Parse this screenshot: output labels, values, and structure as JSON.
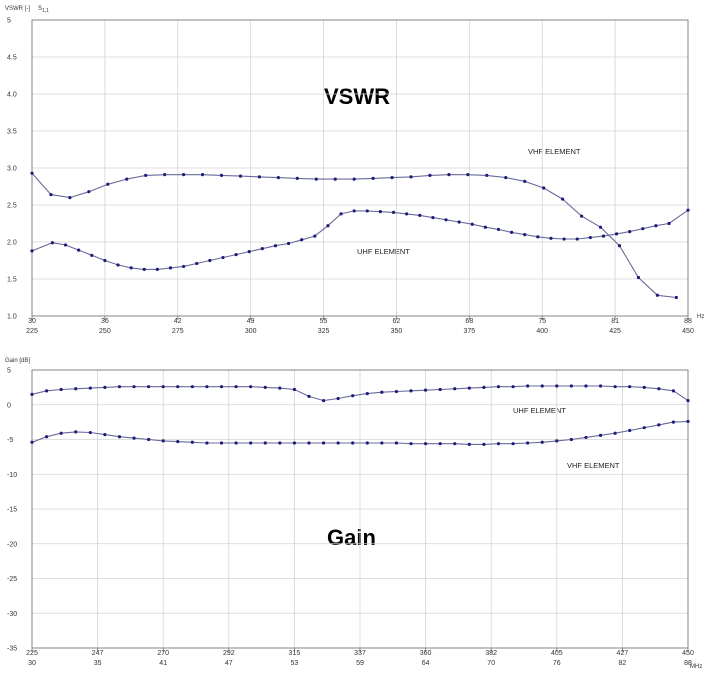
{
  "chart_data": [
    {
      "type": "line",
      "title": "VSWR",
      "ylabel": "VSWR [-]",
      "param_label": "S",
      "param_sub": "1,1",
      "ylim": [
        1.0,
        5.0
      ],
      "y_ticks": [
        "1.0",
        "1.5",
        "2.0",
        "2.5",
        "3.0",
        "3.5",
        "4.0",
        "4.5",
        "5"
      ],
      "x_units": "Hz",
      "x_ticks_upper": [
        "30",
        "36",
        "42",
        "49",
        "55",
        "62",
        "68",
        "75",
        "81",
        "88"
      ],
      "x_ticks_lower": [
        "225",
        "250",
        "275",
        "300",
        "325",
        "350",
        "375",
        "400",
        "425",
        "450"
      ],
      "grid": true,
      "series": [
        {
          "name": "VHF ELEMENT",
          "x": [
            225,
            231.5,
            238,
            244.5,
            251,
            257.5,
            264,
            270.5,
            277,
            283.5,
            290,
            296.5,
            303,
            309.5,
            316,
            322.5,
            329,
            335.5,
            342,
            348.5,
            355,
            361.5,
            368,
            374.5,
            381,
            387.5,
            394,
            400.5,
            407,
            413.5,
            420,
            426.5,
            433,
            439.5,
            446
          ],
          "values": [
            2.93,
            2.64,
            2.6,
            2.68,
            2.78,
            2.85,
            2.9,
            2.91,
            2.91,
            2.91,
            2.9,
            2.89,
            2.88,
            2.87,
            2.86,
            2.85,
            2.85,
            2.85,
            2.86,
            2.87,
            2.88,
            2.9,
            2.91,
            2.91,
            2.9,
            2.87,
            2.82,
            2.73,
            2.58,
            2.35,
            2.2,
            1.95,
            1.52,
            1.28,
            1.25
          ]
        },
        {
          "name": "UHF ELEMENT",
          "x": [
            225,
            232,
            236.5,
            241,
            245.5,
            250,
            254.5,
            259,
            263.5,
            268,
            272.5,
            277,
            281.5,
            286,
            290.5,
            295,
            299.5,
            304,
            308.5,
            313,
            317.5,
            322,
            326.5,
            331,
            335.5,
            340,
            344.5,
            349,
            353.5,
            358,
            362.5,
            367,
            371.5,
            376,
            380.5,
            385,
            389.5,
            394,
            398.5,
            403,
            407.5,
            412,
            416.5,
            421,
            425.5,
            430,
            434.5,
            439,
            443.5,
            450
          ],
          "values": [
            1.88,
            1.99,
            1.96,
            1.89,
            1.82,
            1.75,
            1.69,
            1.65,
            1.63,
            1.63,
            1.65,
            1.67,
            1.71,
            1.75,
            1.79,
            1.83,
            1.87,
            1.91,
            1.95,
            1.98,
            2.03,
            2.08,
            2.22,
            2.38,
            2.42,
            2.42,
            2.41,
            2.4,
            2.38,
            2.36,
            2.33,
            2.3,
            2.27,
            2.24,
            2.2,
            2.17,
            2.13,
            2.1,
            2.07,
            2.05,
            2.04,
            2.04,
            2.06,
            2.08,
            2.11,
            2.14,
            2.18,
            2.22,
            2.25,
            2.43
          ]
        }
      ],
      "annotations": [
        "VHF ELEMENT",
        "UHF ELEMENT"
      ]
    },
    {
      "type": "line",
      "title": "Gain",
      "ylabel": "Gain [dB]",
      "ylim": [
        -35,
        5
      ],
      "y_ticks": [
        "5",
        "0",
        "-5",
        "-10",
        "-15",
        "-20",
        "-25",
        "-30",
        "-35"
      ],
      "x_units": "MHz",
      "x_ticks_upper": [
        "225",
        "247",
        "270",
        "292",
        "315",
        "337",
        "360",
        "382",
        "405",
        "427",
        "450"
      ],
      "x_ticks_lower": [
        "30",
        "35",
        "41",
        "47",
        "53",
        "59",
        "64",
        "70",
        "76",
        "82",
        "88"
      ],
      "grid": true,
      "series": [
        {
          "name": "UHF ELEMENT",
          "x": [
            225,
            230,
            235,
            240,
            245,
            250,
            255,
            260,
            265,
            270,
            275,
            280,
            285,
            290,
            295,
            300,
            305,
            310,
            315,
            320,
            325,
            330,
            335,
            340,
            345,
            350,
            355,
            360,
            365,
            370,
            375,
            380,
            385,
            390,
            395,
            400,
            405,
            410,
            415,
            420,
            425,
            430,
            435,
            440,
            445,
            450
          ],
          "values": [
            1.5,
            2.0,
            2.2,
            2.3,
            2.4,
            2.5,
            2.6,
            2.6,
            2.6,
            2.6,
            2.6,
            2.6,
            2.6,
            2.6,
            2.6,
            2.6,
            2.5,
            2.4,
            2.2,
            1.2,
            0.6,
            0.9,
            1.3,
            1.6,
            1.8,
            1.9,
            2.0,
            2.1,
            2.2,
            2.3,
            2.4,
            2.5,
            2.6,
            2.6,
            2.7,
            2.7,
            2.7,
            2.7,
            2.7,
            2.7,
            2.6,
            2.6,
            2.5,
            2.3,
            2.0,
            0.6
          ]
        },
        {
          "name": "VHF ELEMENT",
          "x": [
            225,
            230,
            235,
            240,
            245,
            250,
            255,
            260,
            265,
            270,
            275,
            280,
            285,
            290,
            295,
            300,
            305,
            310,
            315,
            320,
            325,
            330,
            335,
            340,
            345,
            350,
            355,
            360,
            365,
            370,
            375,
            380,
            385,
            390,
            395,
            400,
            405,
            410,
            415,
            420,
            425,
            430,
            435,
            440,
            445,
            450
          ],
          "values": [
            -5.4,
            -4.6,
            -4.1,
            -3.9,
            -4.0,
            -4.3,
            -4.6,
            -4.8,
            -5.0,
            -5.2,
            -5.3,
            -5.4,
            -5.5,
            -5.5,
            -5.5,
            -5.5,
            -5.5,
            -5.5,
            -5.5,
            -5.5,
            -5.5,
            -5.5,
            -5.5,
            -5.5,
            -5.5,
            -5.5,
            -5.6,
            -5.6,
            -5.6,
            -5.6,
            -5.7,
            -5.7,
            -5.6,
            -5.6,
            -5.5,
            -5.4,
            -5.2,
            -5.0,
            -4.7,
            -4.4,
            -4.1,
            -3.7,
            -3.3,
            -2.9,
            -2.5,
            -2.4
          ]
        }
      ],
      "annotations": [
        "UHF ELEMENT",
        "VHF ELEMENT"
      ]
    }
  ]
}
